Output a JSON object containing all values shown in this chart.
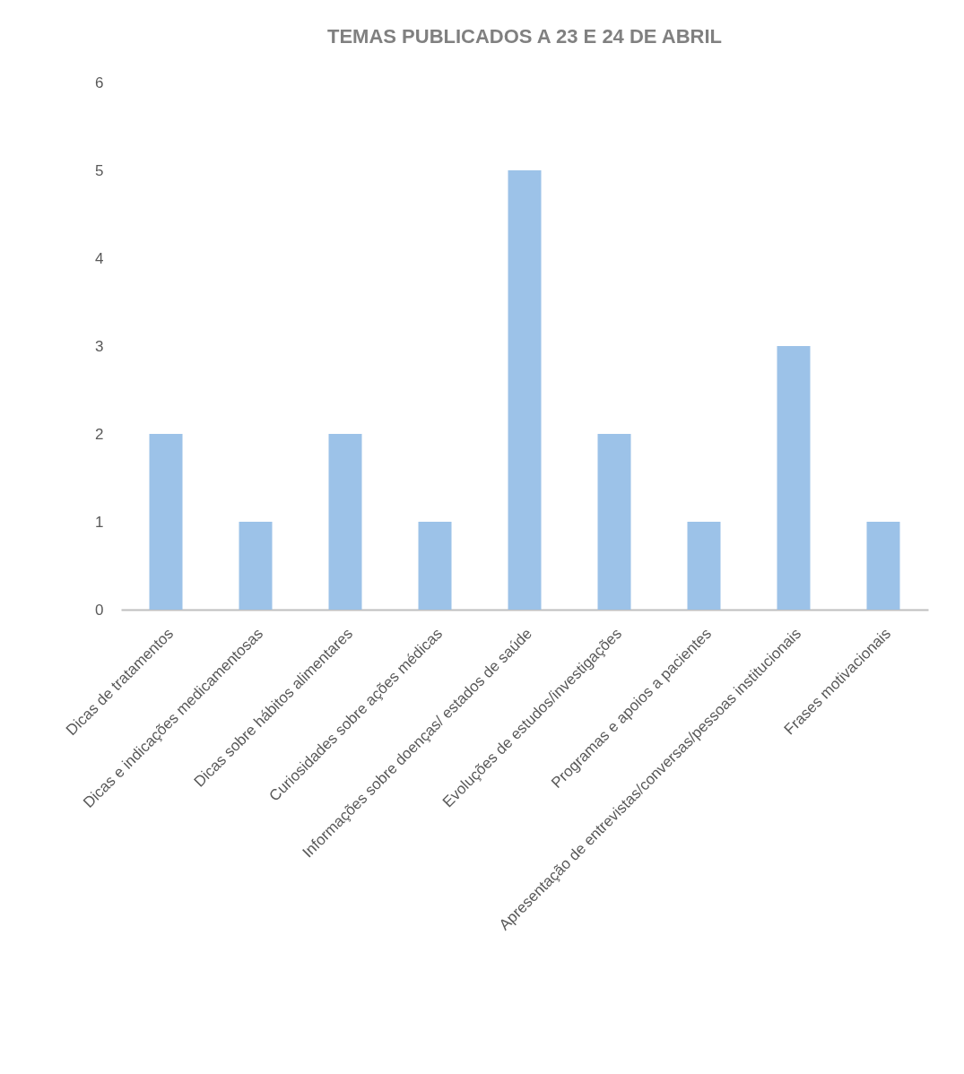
{
  "chart_data": {
    "type": "bar",
    "title": "TEMAS PUBLICADOS A 23 E 24 DE ABRIL",
    "categories": [
      "Dicas de tratamentos",
      "Dicas e indicações medicamentosas",
      "Dicas sobre hábitos alimentares",
      "Curiosidades sobre ações médicas",
      "Informações sobre doenças/ estados de saúde",
      "Evoluções de estudos/investigações",
      "Programas e apoios a pacientes",
      "Apresentação de entrevistas/conversas/pessoas institucionais",
      "Frases motivacionais"
    ],
    "values": [
      2,
      1,
      2,
      1,
      5,
      2,
      1,
      3,
      1
    ],
    "color": "#9cc2e8",
    "ylim": [
      0,
      6
    ],
    "yticks": [
      0,
      1,
      2,
      3,
      4,
      5,
      6
    ],
    "grid": false
  }
}
